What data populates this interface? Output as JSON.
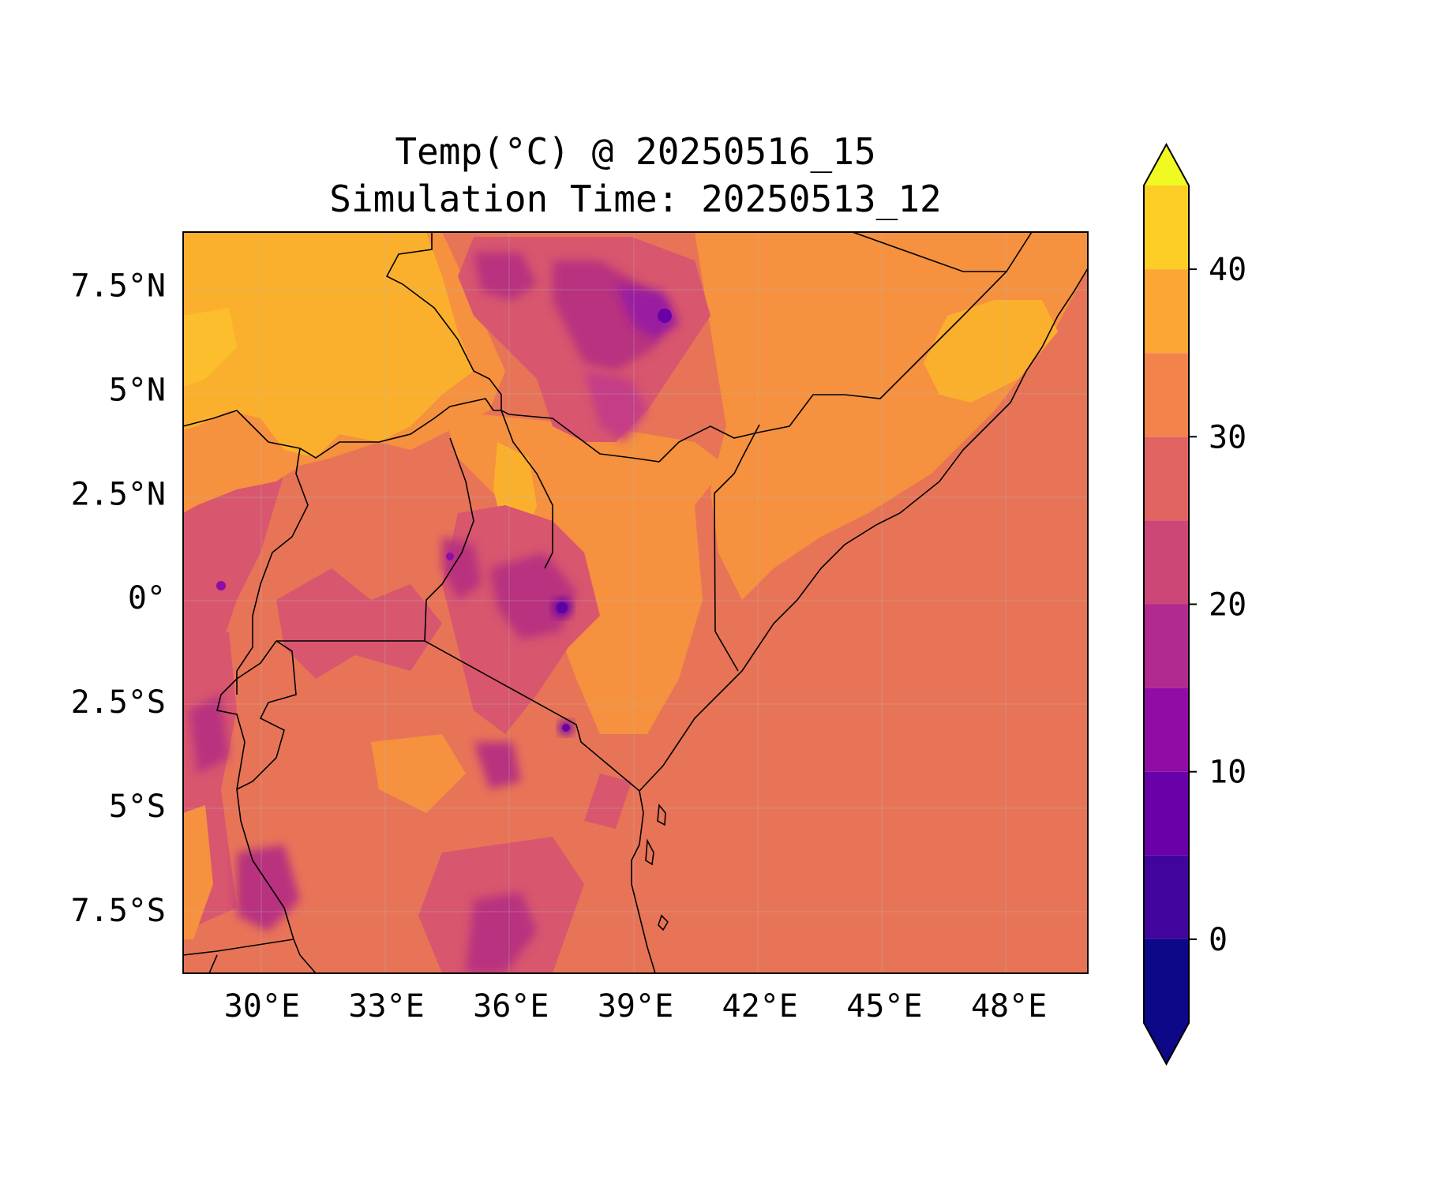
{
  "title": {
    "line1": "Temp(°C) @ 20250516_15",
    "line2": "Simulation Time: 20250513_12"
  },
  "map": {
    "region": "East Africa",
    "lon_range": [
      28.1,
      49.9
    ],
    "lat_range": [
      -9.0,
      8.8
    ],
    "x_ticks": [
      {
        "value": 30,
        "label": "30°E"
      },
      {
        "value": 33,
        "label": "33°E"
      },
      {
        "value": 36,
        "label": "36°E"
      },
      {
        "value": 39,
        "label": "39°E"
      },
      {
        "value": 42,
        "label": "42°E"
      },
      {
        "value": 45,
        "label": "45°E"
      },
      {
        "value": 48,
        "label": "48°E"
      }
    ],
    "y_ticks": [
      {
        "value": 7.5,
        "label": "7.5°N"
      },
      {
        "value": 5,
        "label": "5°N"
      },
      {
        "value": 2.5,
        "label": "2.5°N"
      },
      {
        "value": 0,
        "label": "0°"
      },
      {
        "value": -2.5,
        "label": "2.5°S"
      },
      {
        "value": -5,
        "label": "5°S"
      },
      {
        "value": -7.5,
        "label": "7.5°S"
      }
    ],
    "gridlines": true
  },
  "colorbar": {
    "colormap": "plasma",
    "range": [
      -5,
      45
    ],
    "step": 5,
    "extend": "both",
    "ticks": [
      {
        "value": 0,
        "label": "0"
      },
      {
        "value": 10,
        "label": "10"
      },
      {
        "value": 20,
        "label": "20"
      },
      {
        "value": 30,
        "label": "30"
      },
      {
        "value": 40,
        "label": "40"
      }
    ],
    "colors": [
      "#0d0887",
      "#41049d",
      "#6a00a8",
      "#8f0da4",
      "#b12a90",
      "#cc4778",
      "#e16462",
      "#f2844b",
      "#fca636",
      "#fcce25"
    ],
    "extend_low": "#0d0887",
    "extend_high": "#f0f921"
  }
}
